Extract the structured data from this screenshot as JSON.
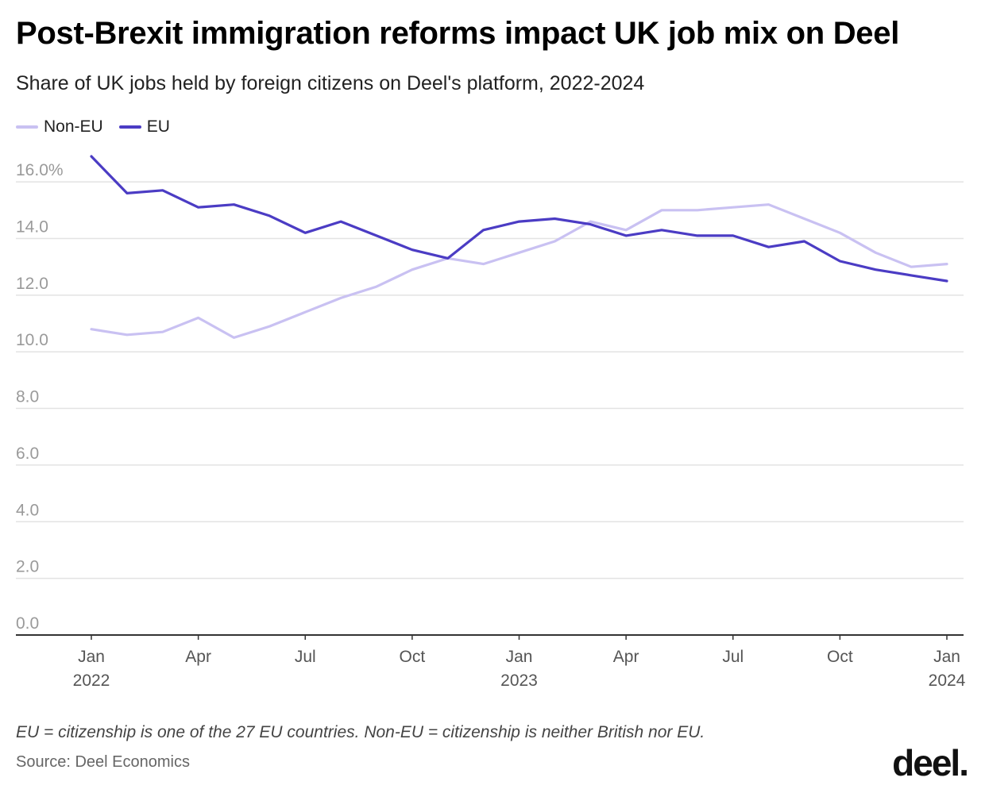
{
  "header": {
    "title": "Post-Brexit immigration reforms impact UK job mix on Deel",
    "subtitle": "Share of UK jobs held by foreign citizens on Deel's platform, 2022-2024"
  },
  "footer": {
    "note": "EU = citizenship is one of the 27 EU countries. Non-EU = citizenship is neither British nor EU.",
    "source": "Source: Deel Economics",
    "logo": "deel."
  },
  "chart_data": {
    "type": "line",
    "x": [
      "2022-01",
      "2022-02",
      "2022-03",
      "2022-04",
      "2022-05",
      "2022-06",
      "2022-07",
      "2022-08",
      "2022-09",
      "2022-10",
      "2022-11",
      "2022-12",
      "2023-01",
      "2023-02",
      "2023-03",
      "2023-04",
      "2023-05",
      "2023-06",
      "2023-07",
      "2023-08",
      "2023-09",
      "2023-10",
      "2023-11",
      "2023-12",
      "2024-01"
    ],
    "series": [
      {
        "name": "Non-EU",
        "color": "#c9c1f2",
        "values": [
          10.8,
          10.6,
          10.7,
          11.2,
          10.5,
          10.9,
          11.4,
          11.9,
          12.3,
          12.9,
          13.3,
          13.1,
          13.5,
          13.9,
          14.6,
          14.3,
          15.0,
          15.0,
          15.1,
          15.2,
          14.7,
          14.2,
          13.5,
          13.0,
          13.1
        ]
      },
      {
        "name": "EU",
        "color": "#4b3cc4",
        "values": [
          16.9,
          15.6,
          15.7,
          15.1,
          15.2,
          14.8,
          14.2,
          14.6,
          14.1,
          13.6,
          13.3,
          14.3,
          14.6,
          14.7,
          14.5,
          14.1,
          14.3,
          14.1,
          14.1,
          13.7,
          13.9,
          13.2,
          12.9,
          12.7,
          12.5
        ]
      }
    ],
    "yticks": [
      {
        "value": 0,
        "label": "0.0"
      },
      {
        "value": 2,
        "label": "2.0"
      },
      {
        "value": 4,
        "label": "4.0"
      },
      {
        "value": 6,
        "label": "6.0"
      },
      {
        "value": 8,
        "label": "8.0"
      },
      {
        "value": 10,
        "label": "10.0"
      },
      {
        "value": 12,
        "label": "12.0"
      },
      {
        "value": 14,
        "label": "14.0"
      },
      {
        "value": 16,
        "label": "16.0%"
      }
    ],
    "xticks": [
      {
        "index": 0,
        "month": "Jan",
        "year": "2022"
      },
      {
        "index": 3,
        "month": "Apr",
        "year": ""
      },
      {
        "index": 6,
        "month": "Jul",
        "year": ""
      },
      {
        "index": 9,
        "month": "Oct",
        "year": ""
      },
      {
        "index": 12,
        "month": "Jan",
        "year": "2023"
      },
      {
        "index": 15,
        "month": "Apr",
        "year": ""
      },
      {
        "index": 18,
        "month": "Jul",
        "year": ""
      },
      {
        "index": 21,
        "month": "Oct",
        "year": ""
      },
      {
        "index": 24,
        "month": "Jan",
        "year": "2024"
      }
    ],
    "ylim": [
      0,
      16.9
    ],
    "grid": true,
    "legend_position": "top-left",
    "colors": {
      "grid": "#e3e3e3",
      "axis": "#333333",
      "tick_label": "#9a9a9a",
      "x_label": "#555555"
    }
  }
}
